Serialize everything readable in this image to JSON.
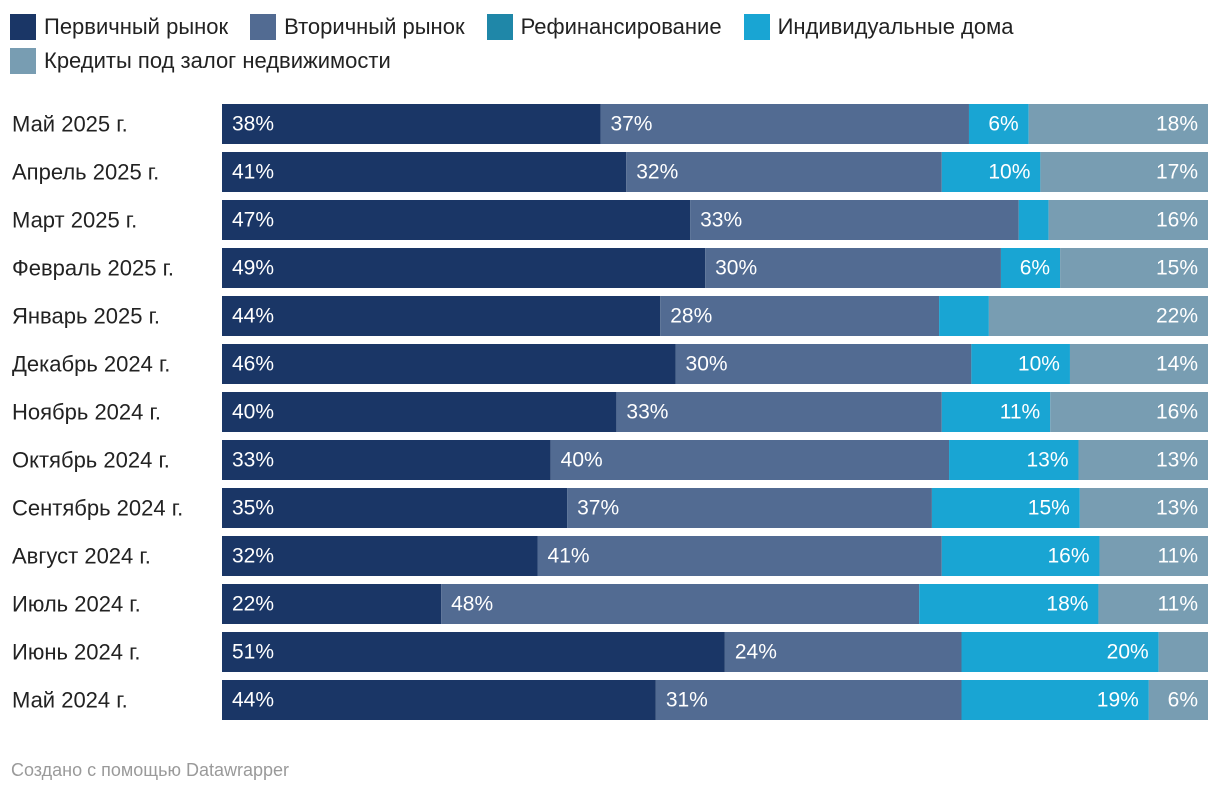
{
  "legend": [
    {
      "label": "Первичный рынок",
      "color": "#1a3666"
    },
    {
      "label": "Вторичный рынок",
      "color": "#526b92"
    },
    {
      "label": "Рефинансирование",
      "color": "#1f87a8"
    },
    {
      "label": "Индивидуальные дома",
      "color": "#19a5d3"
    },
    {
      "label": "Кредиты под залог недвижимости",
      "color": "#789db2"
    }
  ],
  "footer": "Создано с помощью Datawrapper",
  "chart_data": {
    "type": "bar",
    "orientation": "horizontal",
    "stacked": true,
    "legend_position": "top-left",
    "categories": [
      "Май 2025 г.",
      "Апрель 2025 г.",
      "Март 2025 г.",
      "Февраль 2025 г.",
      "Январь 2025 г.",
      "Декабрь 2024 г.",
      "Ноябрь 2024 г.",
      "Октябрь 2024 г.",
      "Сентябрь 2024 г.",
      "Август 2024 г.",
      "Июль 2024 г.",
      "Июнь 2024 г.",
      "Май 2024 г."
    ],
    "series": [
      {
        "name": "Первичный рынок",
        "color": "#1a3666",
        "values": [
          38,
          41,
          47,
          49,
          44,
          46,
          40,
          33,
          35,
          32,
          22,
          51,
          44
        ]
      },
      {
        "name": "Вторичный рынок",
        "color": "#526b92",
        "values": [
          37,
          32,
          33,
          30,
          28,
          30,
          33,
          40,
          37,
          41,
          48,
          24,
          31
        ]
      },
      {
        "name": "Рефинансирование",
        "color": "#1f87a8",
        "values": [
          0,
          0,
          0,
          0,
          0,
          0,
          0,
          0,
          0,
          0,
          0,
          0,
          0
        ]
      },
      {
        "name": "Индивидуальные дома",
        "color": "#19a5d3",
        "values": [
          6,
          10,
          3,
          6,
          5,
          10,
          11,
          13,
          15,
          16,
          18,
          20,
          19
        ]
      },
      {
        "name": "Кредиты под залог недвижимости",
        "color": "#789db2",
        "values": [
          18,
          17,
          16,
          15,
          22,
          14,
          16,
          13,
          13,
          11,
          11,
          5,
          6
        ]
      }
    ],
    "data_labels": [
      [
        "38%",
        "41%",
        "47%",
        "49%",
        "44%",
        "46%",
        "40%",
        "33%",
        "35%",
        "32%",
        "22%",
        "51%",
        "44%"
      ],
      [
        "37%",
        "32%",
        "33%",
        "30%",
        "28%",
        "30%",
        "33%",
        "40%",
        "37%",
        "41%",
        "48%",
        "24%",
        "31%"
      ],
      [
        "",
        "",
        "",
        "",
        "",
        "",
        "",
        "",
        "",
        "",
        "",
        "",
        ""
      ],
      [
        "6%",
        "10%",
        "",
        "6%",
        "",
        "10%",
        "11%",
        "13%",
        "15%",
        "16%",
        "18%",
        "20%",
        "19%"
      ],
      [
        "18%",
        "17%",
        "16%",
        "15%",
        "22%",
        "14%",
        "16%",
        "13%",
        "13%",
        "11%",
        "11%",
        "",
        "6%"
      ]
    ],
    "xlim": [
      0,
      100
    ]
  }
}
